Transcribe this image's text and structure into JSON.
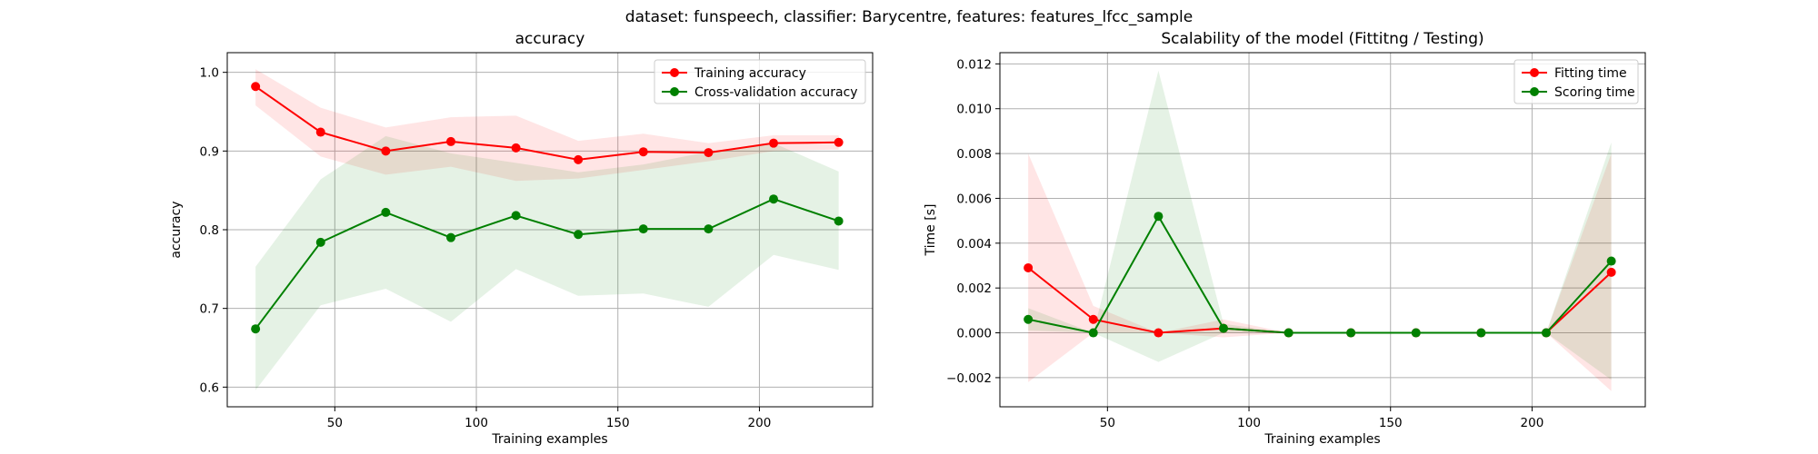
{
  "figure": {
    "suptitle": "dataset: funspeech, classifier: Barycentre, features: features_lfcc_sample"
  },
  "colors": {
    "train": "#ff0000",
    "cv": "#008000",
    "train_band": "#ff0000",
    "cv_band": "#008000",
    "grid": "#b0b0b0"
  },
  "chart_data": [
    {
      "type": "line",
      "title": "accuracy",
      "xlabel": "Training examples",
      "ylabel": "accuracy",
      "xlim": [
        12,
        240
      ],
      "ylim": [
        0.575,
        1.025
      ],
      "xticks": [
        50,
        100,
        150,
        200
      ],
      "yticks": [
        0.6,
        0.7,
        0.8,
        0.9,
        1.0
      ],
      "ytick_labels": [
        "0.6",
        "0.7",
        "0.8",
        "0.9",
        "1.0"
      ],
      "grid": true,
      "legend_position": "upper right",
      "x": [
        22,
        45,
        68,
        91,
        114,
        136,
        159,
        182,
        205,
        228
      ],
      "series": [
        {
          "name": "Training accuracy",
          "color_key": "train",
          "values": [
            0.982,
            0.924,
            0.9,
            0.912,
            0.904,
            0.889,
            0.899,
            0.898,
            0.91,
            0.911
          ],
          "band_lower": [
            0.958,
            0.893,
            0.87,
            0.88,
            0.862,
            0.865,
            0.876,
            0.887,
            0.9,
            0.902
          ],
          "band_upper": [
            1.004,
            0.955,
            0.93,
            0.943,
            0.945,
            0.913,
            0.922,
            0.91,
            0.92,
            0.92
          ]
        },
        {
          "name": "Cross-validation accuracy",
          "color_key": "cv",
          "values": [
            0.674,
            0.784,
            0.822,
            0.79,
            0.818,
            0.794,
            0.801,
            0.801,
            0.839,
            0.811
          ],
          "band_lower": [
            0.596,
            0.704,
            0.725,
            0.683,
            0.75,
            0.716,
            0.719,
            0.702,
            0.768,
            0.749
          ],
          "band_upper": [
            0.753,
            0.864,
            0.919,
            0.897,
            0.885,
            0.873,
            0.883,
            0.899,
            0.91,
            0.874
          ]
        }
      ]
    },
    {
      "type": "line",
      "title": "Scalability of the model (Fittitng / Testing)",
      "xlabel": "Training examples",
      "ylabel": "Time [s]",
      "xlim": [
        12,
        240
      ],
      "ylim": [
        -0.0033,
        0.0125
      ],
      "xticks": [
        50,
        100,
        150,
        200
      ],
      "yticks": [
        -0.002,
        0.0,
        0.002,
        0.004,
        0.006,
        0.008,
        0.01,
        0.012
      ],
      "ytick_labels": [
        "−0.002",
        "0.000",
        "0.002",
        "0.004",
        "0.006",
        "0.008",
        "0.010",
        "0.012"
      ],
      "grid": true,
      "legend_position": "upper right",
      "x": [
        22,
        45,
        68,
        91,
        114,
        136,
        159,
        182,
        205,
        228
      ],
      "series": [
        {
          "name": "Fitting time",
          "color_key": "train",
          "values": [
            0.0029,
            0.0006,
            0.0,
            0.0002,
            0.0,
            0.0,
            0.0,
            0.0,
            0.0,
            0.0027
          ],
          "band_lower": [
            -0.0022,
            0.0,
            0.0,
            -0.0002,
            0.0,
            0.0,
            0.0,
            0.0,
            0.0,
            -0.0026
          ],
          "band_upper": [
            0.008,
            0.0012,
            0.0,
            0.0006,
            0.0,
            0.0,
            0.0,
            0.0,
            0.0,
            0.008
          ]
        },
        {
          "name": "Scoring time",
          "color_key": "cv",
          "values": [
            0.0006,
            0.0,
            0.0052,
            0.0002,
            0.0,
            0.0,
            0.0,
            0.0,
            0.0,
            0.0032
          ],
          "band_lower": [
            0.0001,
            0.0,
            -0.0013,
            0.0,
            0.0,
            0.0,
            0.0,
            0.0,
            0.0,
            -0.0021
          ],
          "band_upper": [
            0.0011,
            0.0,
            0.0117,
            0.0004,
            0.0,
            0.0,
            0.0,
            0.0,
            0.0,
            0.0085
          ]
        }
      ]
    }
  ]
}
